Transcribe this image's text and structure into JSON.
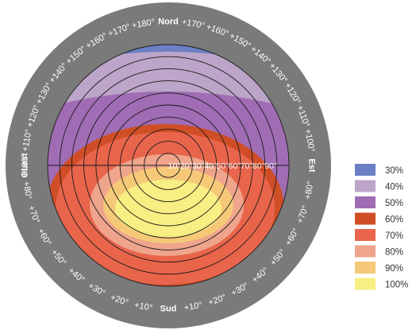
{
  "chart_data": {
    "type": "heatmap",
    "description_words": "sun-path polar diagram, irradiation percentage zones",
    "cardinals": {
      "north": "Nord",
      "south": "Sud",
      "east": "Est",
      "west": "Ouest"
    },
    "ring_labels": {
      "upper_left": [
        "+180°",
        "+170°",
        "+160°",
        "+150°",
        "+140°",
        "+130°",
        "+120°",
        "+110°",
        "+100°"
      ],
      "upper_right": [
        "+170°",
        "+160°",
        "+150°",
        "+140°",
        "+130°",
        "+120°",
        "+110°",
        "+100°"
      ],
      "lower_left": [
        "+80°",
        "+70°",
        "+60°",
        "+50°",
        "+40°",
        "+30°",
        "+20°",
        "+10°"
      ],
      "lower_right": [
        "+80°",
        "+70°",
        "+60°",
        "+50°",
        "+40°",
        "+30°",
        "+20°",
        "+10°"
      ]
    },
    "elevation_labels": [
      "10°",
      "20°",
      "30°",
      "40°",
      "50°",
      "60°",
      "70°",
      "80°",
      "90°"
    ],
    "legend": [
      {
        "label": "30%",
        "color": "#6b7fc4"
      },
      {
        "label": "40%",
        "color": "#bca5c8"
      },
      {
        "label": "50%",
        "color": "#a06cb4"
      },
      {
        "label": "60%",
        "color": "#cf4e26"
      },
      {
        "label": "70%",
        "color": "#e8654c"
      },
      {
        "label": "80%",
        "color": "#efa48c"
      },
      {
        "label": "90%",
        "color": "#f5c978"
      },
      {
        "label": "100%",
        "color": "#f7ee84"
      }
    ],
    "ring_color": "#7a7a7a"
  }
}
